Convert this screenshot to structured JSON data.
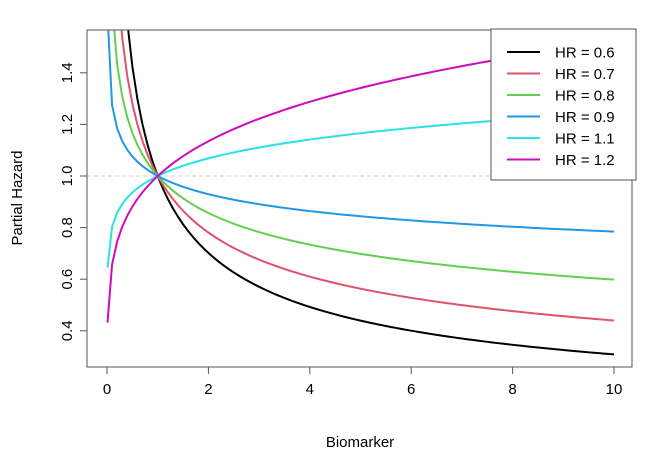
{
  "chart_data": {
    "type": "line",
    "title": "",
    "xlabel": "Biomarker",
    "ylabel": "Partial Hazard",
    "formula": "y = HR ^ ln(x)",
    "x_values": {
      "first": 0.01,
      "then_from": 0.1,
      "to": 10,
      "step": 0.1
    },
    "xlim": [
      -0.5,
      10.4
    ],
    "ylim": [
      0.26,
      1.57
    ],
    "xticks": [
      0,
      2,
      4,
      6,
      8,
      10
    ],
    "xtick_labels": [
      "0",
      "2",
      "4",
      "6",
      "8",
      "10"
    ],
    "yticks": [
      0.4,
      0.6,
      0.8,
      1.0,
      1.2,
      1.4
    ],
    "ytick_labels": [
      "0.4",
      "0.6",
      "0.8",
      "1.0",
      "1.2",
      "1.4"
    ],
    "reference_line": {
      "y": 1.0,
      "style": "dashed",
      "color": "#d3d3d3"
    },
    "legend_position": "top-right",
    "series": [
      {
        "name": "HR = 0.6",
        "hr": 0.6,
        "color": "#000000"
      },
      {
        "name": "HR = 0.7",
        "hr": 0.7,
        "color": "#DF536B"
      },
      {
        "name": "HR = 0.8",
        "hr": 0.8,
        "color": "#61D04F"
      },
      {
        "name": "HR = 0.9",
        "hr": 0.9,
        "color": "#2297E6"
      },
      {
        "name": "HR = 1.1",
        "hr": 1.1,
        "color": "#28E2E5"
      },
      {
        "name": "HR = 1.2",
        "hr": 1.2,
        "color": "#CD0BBC"
      }
    ]
  }
}
